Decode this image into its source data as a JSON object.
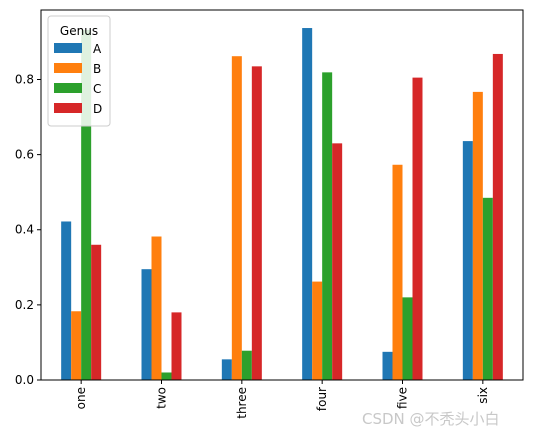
{
  "chart_data": {
    "type": "bar",
    "categories": [
      "one",
      "two",
      "three",
      "four",
      "five",
      "six"
    ],
    "series": [
      {
        "name": "A",
        "color": "#1f77b4",
        "values": [
          0.422,
          0.295,
          0.055,
          0.937,
          0.075,
          0.636
        ]
      },
      {
        "name": "B",
        "color": "#ff7f0e",
        "values": [
          0.183,
          0.382,
          0.862,
          0.262,
          0.573,
          0.767
        ]
      },
      {
        "name": "C",
        "color": "#2ca02c",
        "values": [
          0.932,
          0.02,
          0.078,
          0.819,
          0.22,
          0.485
        ]
      },
      {
        "name": "D",
        "color": "#d62728",
        "values": [
          0.36,
          0.18,
          0.835,
          0.63,
          0.805,
          0.868
        ]
      }
    ],
    "ylim": [
      0,
      0.985
    ],
    "yticks": [
      0.0,
      0.2,
      0.4,
      0.6,
      0.8
    ],
    "ytick_labels": [
      "0.0",
      "0.2",
      "0.4",
      "0.6",
      "0.8"
    ],
    "legend": {
      "title": "Genus",
      "position": "top-left"
    },
    "grid": false
  },
  "watermark": "CSDN @不秃头小白"
}
